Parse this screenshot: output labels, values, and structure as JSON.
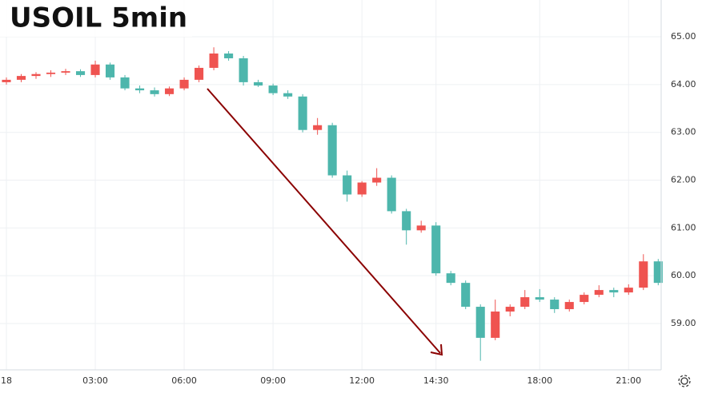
{
  "chart_data": {
    "type": "candlestick",
    "title": "USOIL 5min",
    "x": [
      0,
      0.5,
      1,
      1.5,
      2,
      2.5,
      3,
      3.5,
      4,
      4.5,
      5,
      5.5,
      6,
      6.5,
      7,
      7.5,
      8,
      8.5,
      9,
      9.5,
      10,
      10.5,
      11,
      11.5,
      12,
      12.5,
      13,
      13.5,
      14,
      14.5,
      15,
      15.5,
      16,
      16.5,
      17,
      17.5,
      18,
      18.5,
      19,
      19.5,
      20,
      20.5,
      21,
      21.5,
      22
    ],
    "open": [
      64.05,
      64.1,
      64.18,
      64.22,
      64.25,
      64.28,
      64.2,
      64.42,
      64.15,
      63.92,
      63.88,
      63.8,
      63.92,
      64.1,
      64.35,
      64.65,
      64.55,
      64.05,
      63.98,
      63.82,
      63.75,
      63.05,
      63.15,
      62.1,
      61.7,
      61.95,
      62.05,
      61.35,
      60.95,
      61.05,
      60.05,
      59.85,
      59.35,
      58.7,
      59.25,
      59.35,
      59.55,
      59.5,
      59.3,
      59.45,
      59.6,
      59.7,
      59.65,
      59.75,
      60.3
    ],
    "high": [
      64.15,
      64.22,
      64.26,
      64.3,
      64.33,
      64.32,
      64.5,
      64.46,
      64.2,
      63.98,
      63.94,
      63.96,
      64.15,
      64.4,
      64.78,
      64.7,
      64.6,
      64.1,
      64.02,
      63.88,
      63.8,
      63.3,
      63.2,
      62.2,
      61.98,
      62.25,
      62.1,
      61.4,
      61.15,
      61.12,
      60.1,
      59.9,
      59.4,
      59.5,
      59.4,
      59.7,
      59.72,
      59.55,
      59.5,
      59.65,
      59.8,
      59.75,
      59.82,
      60.45,
      60.35
    ],
    "low": [
      64.0,
      64.05,
      64.12,
      64.16,
      64.2,
      64.16,
      64.15,
      64.1,
      63.88,
      63.82,
      63.75,
      63.76,
      63.88,
      64.05,
      64.3,
      64.5,
      63.98,
      63.95,
      63.78,
      63.7,
      63.0,
      62.95,
      62.05,
      61.55,
      61.65,
      61.88,
      61.3,
      60.65,
      60.9,
      60.0,
      59.8,
      59.3,
      58.22,
      58.65,
      59.15,
      59.3,
      59.45,
      59.22,
      59.25,
      59.4,
      59.55,
      59.55,
      59.6,
      59.7,
      59.8
    ],
    "close": [
      64.1,
      64.18,
      64.22,
      64.25,
      64.28,
      64.2,
      64.42,
      64.15,
      63.92,
      63.88,
      63.8,
      63.92,
      64.1,
      64.35,
      64.65,
      64.55,
      64.05,
      63.98,
      63.82,
      63.75,
      63.05,
      63.15,
      62.1,
      61.7,
      61.95,
      62.05,
      61.35,
      60.95,
      61.05,
      60.05,
      59.85,
      59.35,
      58.7,
      59.25,
      59.35,
      59.55,
      59.5,
      59.3,
      59.45,
      59.6,
      59.7,
      59.65,
      59.75,
      60.3,
      59.85
    ],
    "up_color": "#ef5350",
    "down_color": "#4db6ac",
    "xlim": [
      -0.216,
      22.1
    ],
    "xticks": [
      {
        "value": 0,
        "label": "18"
      },
      {
        "value": 3,
        "label": "03:00"
      },
      {
        "value": 6,
        "label": "06:00"
      },
      {
        "value": 9,
        "label": "09:00"
      },
      {
        "value": 12,
        "label": "12:00"
      },
      {
        "value": 14.5,
        "label": "14:30"
      },
      {
        "value": 18,
        "label": "18:00"
      },
      {
        "value": 21,
        "label": "21:00"
      }
    ],
    "ylim": [
      58.03,
      65.77
    ],
    "yticks": [
      {
        "value": 59,
        "label": "59.00"
      },
      {
        "value": 60,
        "label": "60.00"
      },
      {
        "value": 61,
        "label": "61.00"
      },
      {
        "value": 62,
        "label": "62.00"
      },
      {
        "value": 63,
        "label": "63.00"
      },
      {
        "value": 64,
        "label": "64.00"
      },
      {
        "value": 65,
        "label": "65.00"
      }
    ],
    "grid": true
  }
}
